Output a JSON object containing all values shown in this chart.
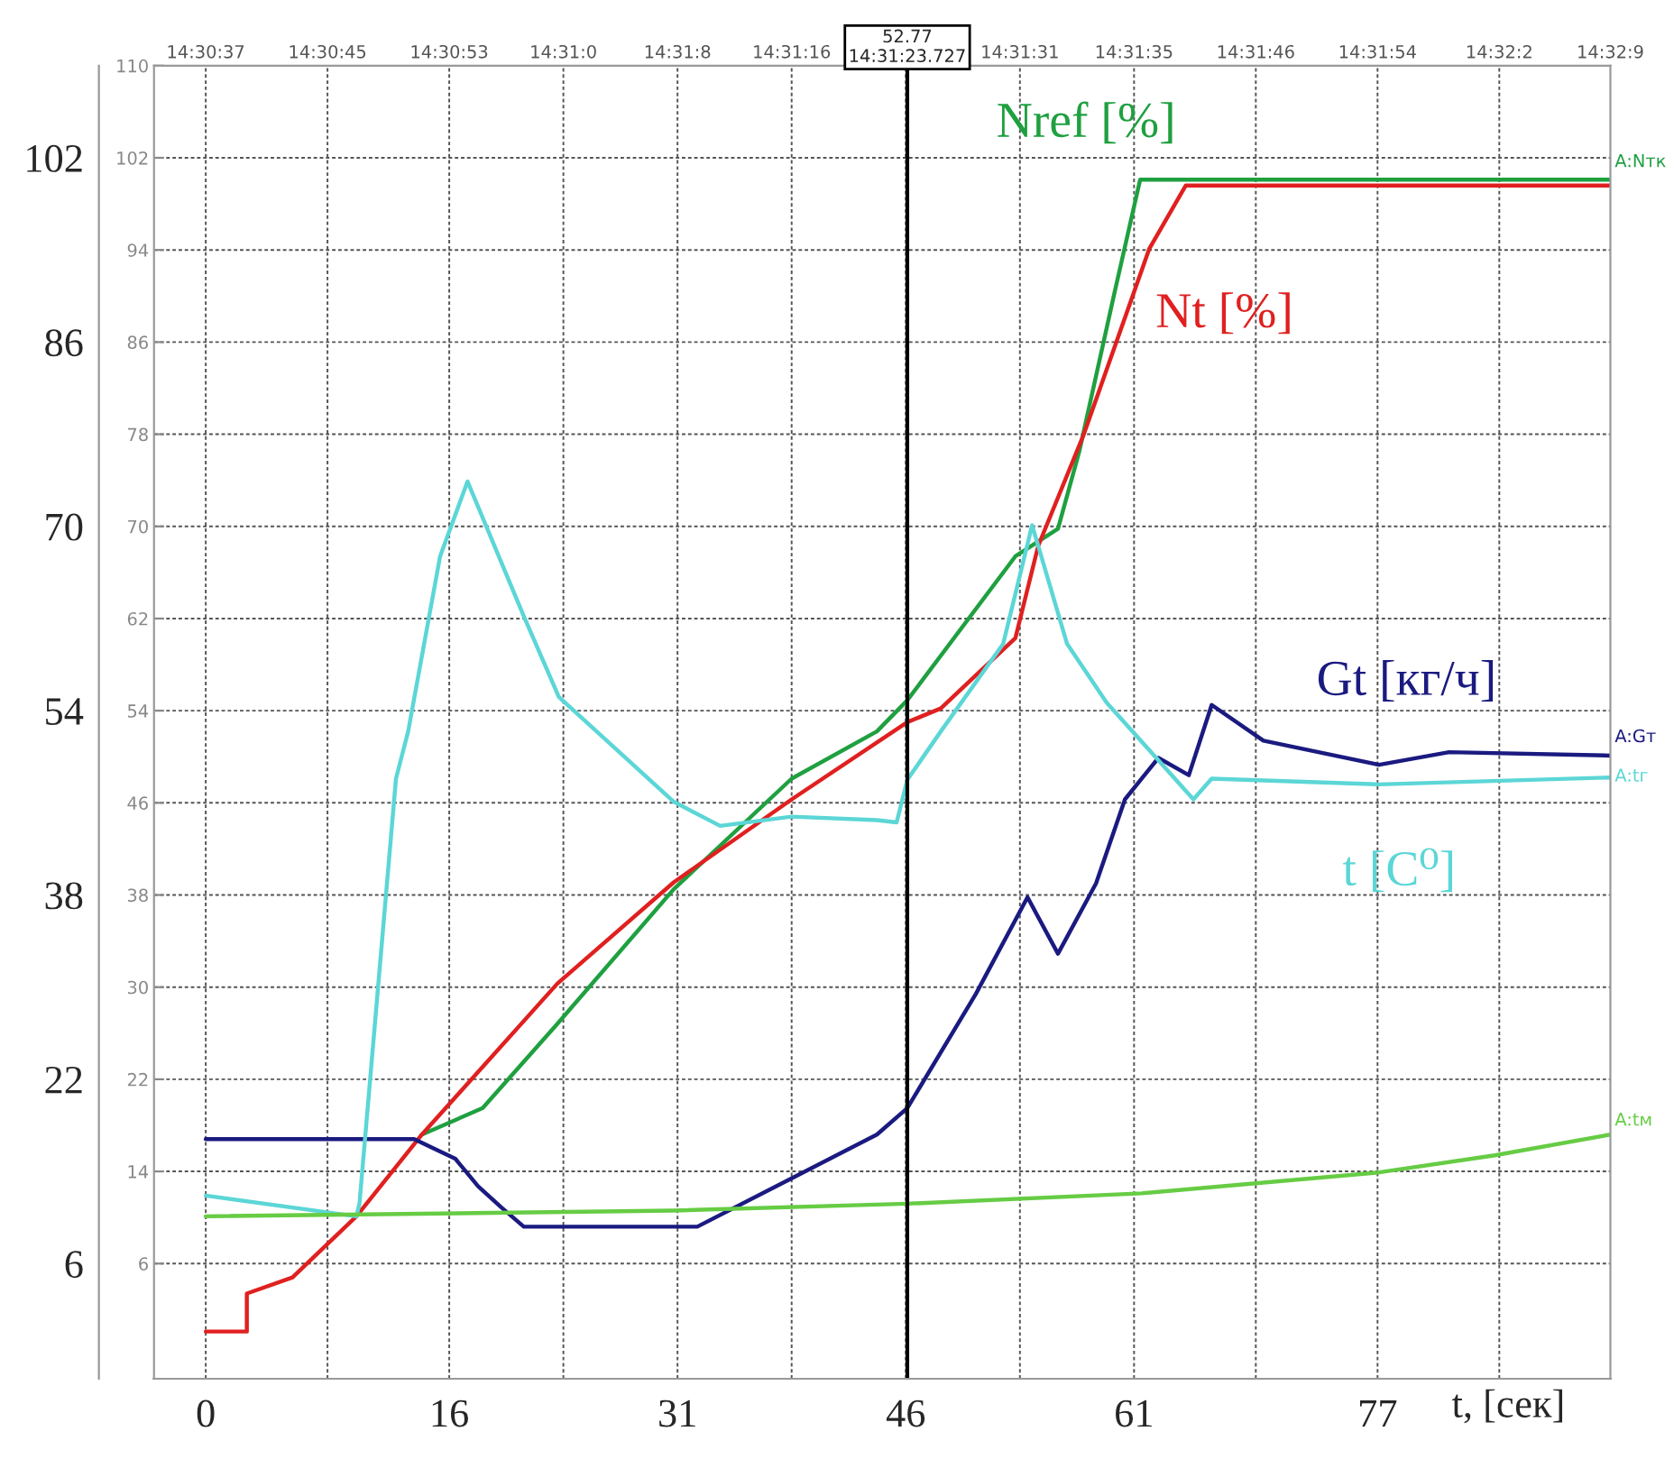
{
  "chart_data": {
    "type": "line",
    "xlabel": "t, [сек]",
    "xlim": [
      -3.4,
      92.3
    ],
    "xticks": [
      0,
      16,
      31,
      46,
      61,
      77
    ],
    "ylim": [
      -4,
      110
    ],
    "yticks": [
      6,
      14,
      22,
      30,
      38,
      46,
      54,
      62,
      70,
      78,
      86,
      94,
      102,
      110
    ],
    "y2lim": [
      -4,
      110
    ],
    "y2ticks": [
      6,
      22,
      38,
      54,
      70,
      86,
      102
    ],
    "grid": true,
    "line_style": "solid",
    "series": [
      {
        "name": "Nref [%]",
        "color": "#1fa040",
        "x": [
          14.2,
          18.2,
          23.1,
          30.75,
          38.5,
          44.1,
          46.1,
          53.2,
          56,
          57.4,
          59.7,
          61.4,
          92.3
        ],
        "values": [
          17.2,
          19.5,
          26.8,
          38.5,
          48.1,
          52.2,
          54.9,
          67.4,
          69.8,
          76.5,
          90.2,
          100.1,
          100.1
        ]
      },
      {
        "name": "Nt [%]",
        "color": "#e02020",
        "x": [
          0,
          2.7,
          2.7,
          5.7,
          9.9,
          14.2,
          23.1,
          30.75,
          38.5,
          46.1,
          48.3,
          53.2,
          54.7,
          57.7,
          62,
          64.4,
          92.3
        ],
        "values": [
          0.1,
          0.1,
          3.4,
          4.8,
          10.1,
          17.2,
          30.3,
          39.1,
          46.3,
          53,
          54.2,
          60.3,
          68.3,
          78,
          94.1,
          99.6,
          99.6
        ]
      },
      {
        "name": "Gt [кг/ч]",
        "color": "#1a1a80",
        "x": [
          0,
          13.7,
          16.4,
          17.9,
          19.4,
          20.9,
          32.3,
          38.5,
          44.1,
          46.1,
          50.6,
          54,
          56,
          58.5,
          60.4,
          62.6,
          64.6,
          66.1,
          69.5,
          77.1,
          81.7,
          92.3
        ],
        "values": [
          16.8,
          16.8,
          15.1,
          12.7,
          10.9,
          9.2,
          9.2,
          13.4,
          17.2,
          19.5,
          29.4,
          37.8,
          32.9,
          39,
          46.3,
          49.9,
          48.4,
          54.5,
          51.4,
          49.3,
          50.4,
          50.1
        ]
      },
      {
        "name": "t [C⁰]",
        "color": "#5cd6d6",
        "x": [
          0,
          9.9,
          10.1,
          12.5,
          13.3,
          15.4,
          17.2,
          20.9,
          23.2,
          30.75,
          33.8,
          38.5,
          44.1,
          45.4,
          46.1,
          48.3,
          52.4,
          54.3,
          56.6,
          59.2,
          64.9,
          66.1,
          77.1,
          92.3
        ],
        "values": [
          11.9,
          10.1,
          11.2,
          48.1,
          52.2,
          67.4,
          73.9,
          62.2,
          55.2,
          46.1,
          44,
          44.8,
          44.5,
          44.3,
          48,
          52.2,
          59.8,
          70.1,
          59.8,
          54.7,
          46.3,
          48.1,
          47.6,
          48.2
        ]
      },
      {
        "color": "#66cc44",
        "x": [
          0,
          30.75,
          46.1,
          61.5,
          77,
          84.7,
          92.3
        ],
        "values": [
          10.1,
          10.6,
          11.2,
          12.1,
          13.9,
          15.4,
          17.2
        ]
      }
    ],
    "ref_lines": [
      {
        "axis": "x",
        "value": 46.1,
        "color": "#000000"
      }
    ],
    "annotations": [
      "52.77\n14:31:23.727",
      "A:Nтк",
      "A:Gт",
      "A:tг",
      "A:tм",
      "14:30:37",
      "14:30:45",
      "14:30:53",
      "14:31:0",
      "14:31:8",
      "14:31:16",
      "14:31:31",
      "14:31:35",
      "14:31:46",
      "14:31:54",
      "14:32:2",
      "14:32:9"
    ]
  }
}
